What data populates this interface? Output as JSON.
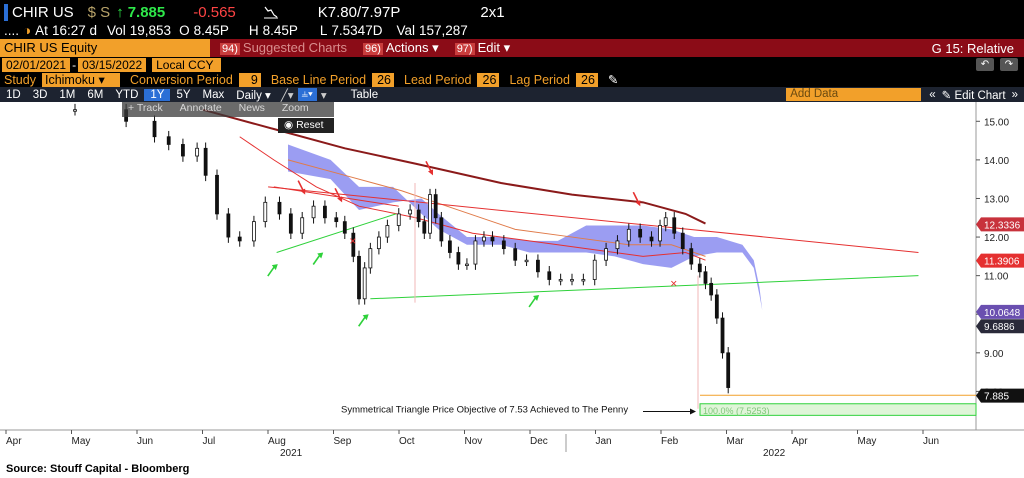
{
  "header": {
    "ticker": "CHIR US",
    "currency": "$ S",
    "up_arrow": "↑",
    "price": "7.885",
    "change": "-0.565",
    "bid_ask": "K7.80/7.97P",
    "layout": "2x1"
  },
  "stats": {
    "dots": "....",
    "at_label": "At",
    "time": "16:27 d",
    "vol_label": "Vol",
    "vol": "19,853",
    "open_label": "O",
    "open": "8.45P",
    "high_label": "H",
    "high": "8.45P",
    "low_label": "L",
    "low": "7.5347D",
    "val_label": "Val",
    "val": "157,287"
  },
  "menubar": {
    "security": "CHIR US Equity",
    "suggested": "Suggested Charts",
    "actions_num": "96)",
    "actions": "Actions",
    "edit_num": "97)",
    "edit": "Edit",
    "title": "G 15: Relative"
  },
  "range": {
    "start": "02/01/2021",
    "end": "03/15/2022",
    "ccy": "Local CCY"
  },
  "study": {
    "label": "Study",
    "name": "Ichimoku",
    "conv_label": "Conversion Period",
    "conv": "9",
    "base_label": "Base Line Period",
    "base": "26",
    "lead_label": "Lead Period",
    "lead": "26",
    "lag_label": "Lag Period",
    "lag": "26"
  },
  "periods": [
    "1D",
    "3D",
    "1M",
    "6M",
    "YTD",
    "1Y",
    "5Y",
    "Max"
  ],
  "toolbar": {
    "freq": "Daily",
    "table": "Table",
    "add_data": "Add Data",
    "edit_chart": "Edit Chart",
    "reset": "Reset",
    "track": "Track",
    "annotate": "Annotate",
    "news": "News",
    "zoom": "Zoom"
  },
  "colors": {
    "accent": "#f2a02a",
    "menubar": "#8b0c17",
    "kumo": "#8a8cf0",
    "sma_long": "#8b1a1a",
    "sma_mid": "#e07b4a",
    "resistance": "#e53030",
    "support": "#2ed13a"
  },
  "chart_data": {
    "type": "line",
    "ylim": [
      7.0,
      15.5
    ],
    "y_ticks": [
      8.0,
      9.0,
      10.0,
      11.0,
      12.0,
      13.0,
      14.0,
      15.0
    ],
    "x_ticks": [
      "Apr",
      "May",
      "Jun",
      "Jul",
      "Aug",
      "Sep",
      "Oct",
      "Nov",
      "Dec",
      "Jan",
      "Feb",
      "Mar",
      "Apr",
      "May",
      "Jun"
    ],
    "year_labels": [
      "2021",
      "2022"
    ],
    "price_labels": [
      {
        "value": "12.3336",
        "y": 12.33,
        "color": "#c8323c"
      },
      {
        "value": "11.3906",
        "y": 11.39,
        "color": "#e53030"
      },
      {
        "value": "10.0648",
        "y": 10.06,
        "color": "#6a4fb0"
      },
      {
        "value": "9.6886",
        "y": 9.69,
        "color": "#2a2a3a"
      },
      {
        "value": "7.885",
        "y": 7.89,
        "color": "#111"
      }
    ],
    "series": [
      {
        "type": "candles",
        "points": [
          [
            0,
            15.3
          ],
          [
            18,
            15.0
          ],
          [
            28,
            14.6
          ],
          [
            33,
            14.4
          ],
          [
            38,
            14.1
          ],
          [
            43,
            14.3
          ],
          [
            46,
            13.6
          ],
          [
            50,
            12.6
          ],
          [
            54,
            12.0
          ],
          [
            58,
            11.9
          ],
          [
            63,
            12.4
          ],
          [
            67,
            12.9
          ],
          [
            72,
            12.6
          ],
          [
            76,
            12.1
          ],
          [
            80,
            12.5
          ],
          [
            84,
            12.8
          ],
          [
            88,
            12.5
          ],
          [
            92,
            12.4
          ],
          [
            95,
            12.1
          ],
          [
            98,
            11.5
          ],
          [
            100,
            10.4
          ],
          [
            102,
            11.2
          ],
          [
            104,
            11.7
          ],
          [
            107,
            12.0
          ],
          [
            110,
            12.3
          ],
          [
            114,
            12.6
          ],
          [
            118,
            12.7
          ],
          [
            121,
            12.4
          ],
          [
            123,
            12.1
          ],
          [
            125,
            13.1
          ],
          [
            127,
            12.5
          ],
          [
            129,
            11.9
          ],
          [
            132,
            11.6
          ],
          [
            135,
            11.3
          ],
          [
            138,
            11.3
          ],
          [
            141,
            11.9
          ],
          [
            144,
            12.0
          ],
          [
            147,
            11.9
          ],
          [
            151,
            11.7
          ],
          [
            155,
            11.4
          ],
          [
            159,
            11.4
          ],
          [
            163,
            11.1
          ],
          [
            167,
            10.9
          ],
          [
            171,
            10.9
          ],
          [
            175,
            10.9
          ],
          [
            179,
            10.9
          ],
          [
            183,
            11.4
          ],
          [
            187,
            11.7
          ],
          [
            191,
            11.9
          ],
          [
            195,
            12.2
          ],
          [
            199,
            12.0
          ],
          [
            203,
            11.9
          ],
          [
            206,
            12.3
          ],
          [
            208,
            12.5
          ],
          [
            211,
            12.1
          ],
          [
            214,
            11.7
          ],
          [
            217,
            11.3
          ],
          [
            220,
            11.1
          ],
          [
            222,
            10.8
          ],
          [
            224,
            10.5
          ],
          [
            226,
            9.9
          ],
          [
            228,
            9.0
          ],
          [
            230,
            8.1
          ]
        ]
      },
      {
        "type": "kumo",
        "upper": [
          [
            75,
            13.7
          ],
          [
            90,
            13.5
          ],
          [
            100,
            12.7
          ],
          [
            112,
            12.9
          ],
          [
            122,
            13.0
          ],
          [
            128,
            12.6
          ],
          [
            138,
            12.0
          ],
          [
            150,
            12.0
          ],
          [
            160,
            11.9
          ],
          [
            170,
            11.9
          ],
          [
            180,
            12.3
          ],
          [
            190,
            12.3
          ],
          [
            200,
            12.3
          ],
          [
            210,
            12.2
          ],
          [
            218,
            12.0
          ],
          [
            226,
            12.0
          ],
          [
            235,
            11.8
          ],
          [
            239,
            11.4
          ],
          [
            241,
            10.7
          ],
          [
            242,
            10.1
          ]
        ],
        "lower": [
          [
            75,
            14.4
          ],
          [
            90,
            14.0
          ],
          [
            100,
            13.3
          ],
          [
            112,
            13.3
          ],
          [
            122,
            12.6
          ],
          [
            128,
            12.2
          ],
          [
            138,
            11.8
          ],
          [
            150,
            11.8
          ],
          [
            160,
            11.6
          ],
          [
            170,
            11.6
          ],
          [
            180,
            11.6
          ],
          [
            190,
            11.5
          ],
          [
            200,
            11.3
          ],
          [
            210,
            11.2
          ],
          [
            218,
            11.5
          ],
          [
            226,
            11.6
          ],
          [
            235,
            11.6
          ],
          [
            239,
            11.2
          ],
          [
            241,
            10.5
          ],
          [
            242,
            10.1
          ]
        ]
      },
      {
        "type": "line",
        "name": "sma_long",
        "points": [
          [
            45,
            15.3
          ],
          [
            70,
            14.8
          ],
          [
            95,
            14.3
          ],
          [
            120,
            13.9
          ],
          [
            150,
            13.4
          ],
          [
            175,
            13.1
          ],
          [
            200,
            12.9
          ],
          [
            215,
            12.6
          ],
          [
            222,
            12.35
          ]
        ]
      },
      {
        "type": "line",
        "name": "sma_mid",
        "points": [
          [
            75,
            14.0
          ],
          [
            95,
            13.6
          ],
          [
            115,
            13.2
          ],
          [
            135,
            12.7
          ],
          [
            155,
            12.2
          ],
          [
            175,
            12.0
          ],
          [
            195,
            11.8
          ],
          [
            210,
            11.8
          ],
          [
            222,
            11.5
          ]
        ]
      },
      {
        "type": "line",
        "name": "sma_short",
        "points": [
          [
            58,
            14.6
          ],
          [
            70,
            14.0
          ],
          [
            85,
            13.3
          ],
          [
            100,
            12.8
          ],
          [
            120,
            12.5
          ],
          [
            140,
            12.1
          ],
          [
            160,
            11.9
          ],
          [
            180,
            11.7
          ],
          [
            200,
            11.5
          ],
          [
            215,
            11.6
          ],
          [
            222,
            11.4
          ]
        ]
      },
      {
        "type": "trendline",
        "name": "resistance",
        "points": [
          [
            68,
            13.3
          ],
          [
            297,
            11.6
          ]
        ]
      },
      {
        "type": "trendline",
        "name": "support",
        "points": [
          [
            104,
            10.4
          ],
          [
            297,
            11.0
          ]
        ]
      },
      {
        "type": "trendline",
        "name": "support_short",
        "points": [
          [
            71,
            11.6
          ],
          [
            113,
            12.6
          ]
        ]
      },
      {
        "type": "trendline",
        "name": "upper_wedge",
        "points": [
          [
            70,
            13.3
          ],
          [
            114,
            12.8
          ]
        ]
      }
    ],
    "annotation": {
      "text": "Symmetrical Triangle Price Objective of 7.53 Achieved to The Penny",
      "fib_label": "100.0% (7.5253)",
      "target": 7.53
    },
    "markers": {
      "red_down": [
        [
          80,
          13.1
        ],
        [
          93,
          12.9
        ],
        [
          125,
          13.6
        ],
        [
          198,
          12.8
        ]
      ],
      "green_up": [
        [
          70,
          11.3
        ],
        [
          86,
          11.6
        ],
        [
          102,
          10.0
        ],
        [
          162,
          10.5
        ]
      ],
      "red_x": [
        [
          98,
          11.9
        ],
        [
          211,
          10.8
        ]
      ]
    }
  },
  "footer": {
    "source": "Source:  Stouff Capital - Bloomberg"
  }
}
